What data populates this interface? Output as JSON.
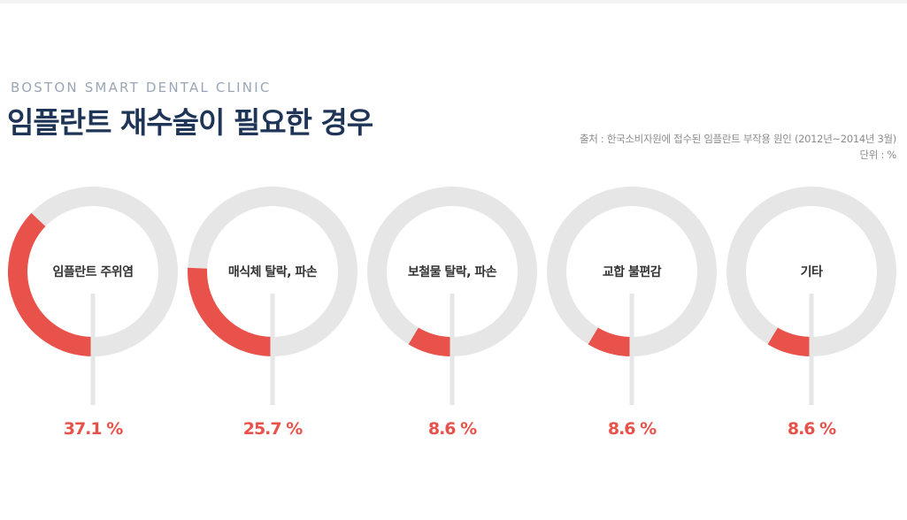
{
  "header": {
    "subtitle": "BOSTON SMART DENTAL CLINIC",
    "title": "임플란트 재수술이 필요한 경우"
  },
  "source": {
    "line1": "출처 : 한국소비자원에 접수된 임플란트 부작용 원인 (2012년~2014년 3월)",
    "line2": "단위 : %"
  },
  "colors": {
    "accent": "#e8524a",
    "ring": "#e6e6e6",
    "title": "#1f3557",
    "subtitle": "#9aa6b8"
  },
  "chart_data": {
    "type": "pie",
    "title": "임플란트 재수술이 필요한 경우",
    "unit": "%",
    "categories": [
      "임플란트 주위염",
      "매식체 탈락, 파손",
      "보철물 탈락, 파손",
      "교합 불편감",
      "기타"
    ],
    "values": [
      37.1,
      25.7,
      8.6,
      8.6,
      8.6
    ],
    "value_labels": [
      "37.1 %",
      "25.7 %",
      "8.6 %",
      "8.6 %",
      "8.6 %"
    ]
  }
}
